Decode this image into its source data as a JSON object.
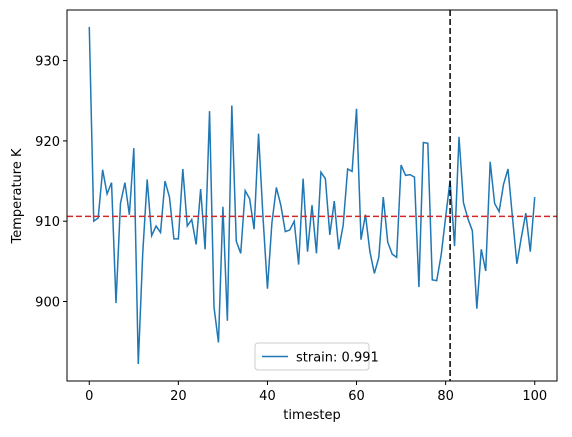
{
  "chart_data": {
    "type": "line",
    "xlabel": "timestep",
    "ylabel": "Temperature K",
    "x": [
      0,
      1,
      2,
      3,
      4,
      5,
      6,
      7,
      8,
      9,
      10,
      11,
      12,
      13,
      14,
      15,
      16,
      17,
      18,
      19,
      20,
      21,
      22,
      23,
      24,
      25,
      26,
      27,
      28,
      29,
      30,
      31,
      32,
      33,
      34,
      35,
      36,
      37,
      38,
      39,
      40,
      41,
      42,
      43,
      44,
      45,
      46,
      47,
      48,
      49,
      50,
      51,
      52,
      53,
      54,
      55,
      56,
      57,
      58,
      59,
      60,
      61,
      62,
      63,
      64,
      65,
      66,
      67,
      68,
      69,
      70,
      71,
      72,
      73,
      74,
      75,
      76,
      77,
      78,
      79,
      80,
      81,
      82,
      83,
      84,
      85,
      86,
      87,
      88,
      89,
      90,
      91,
      92,
      93,
      94,
      95,
      96,
      97,
      98,
      99,
      100
    ],
    "series": [
      {
        "name": "strain: 0.991",
        "color": "#1f77b4",
        "values": [
          934.2,
          910.0,
          910.4,
          916.4,
          913.4,
          914.8,
          899.8,
          912.2,
          914.8,
          910.8,
          919.1,
          892.2,
          906.0,
          915.2,
          908.2,
          909.4,
          908.6,
          915.0,
          913.0,
          907.8,
          907.8,
          916.5,
          909.4,
          910.2,
          907.1,
          914.0,
          906.5,
          923.7,
          899.3,
          894.9,
          911.8,
          897.6,
          924.4,
          907.5,
          906.0,
          913.8,
          912.8,
          909.0,
          920.9,
          910.5,
          901.6,
          909.8,
          914.2,
          912.0,
          908.7,
          908.9,
          910.0,
          904.6,
          915.3,
          906.2,
          912.0,
          906.0,
          916.1,
          915.3,
          908.3,
          912.5,
          906.5,
          909.5,
          916.5,
          916.2,
          924.0,
          907.7,
          910.8,
          906.2,
          903.5,
          905.5,
          913.0,
          907.4,
          905.9,
          905.5,
          917.0,
          915.7,
          915.8,
          915.5,
          901.8,
          919.8,
          919.7,
          902.7,
          902.6,
          905.8,
          910.5,
          915.1,
          906.9,
          920.5,
          912.3,
          910.3,
          908.8,
          899.1,
          906.5,
          903.8,
          917.4,
          912.2,
          911.2,
          914.6,
          916.5,
          910.5,
          904.7,
          908.0,
          911.0,
          906.2,
          913.0
        ]
      }
    ],
    "hline": {
      "value": 910.6,
      "color": "#d62728"
    },
    "vline": {
      "value": 81,
      "color": "#000000"
    },
    "xlim": [
      -5,
      105
    ],
    "ylim": [
      890.1,
      936.3
    ],
    "xticks": [
      0,
      20,
      40,
      60,
      80,
      100
    ],
    "yticks": [
      900,
      910,
      920,
      930
    ],
    "legend": "lower center"
  }
}
